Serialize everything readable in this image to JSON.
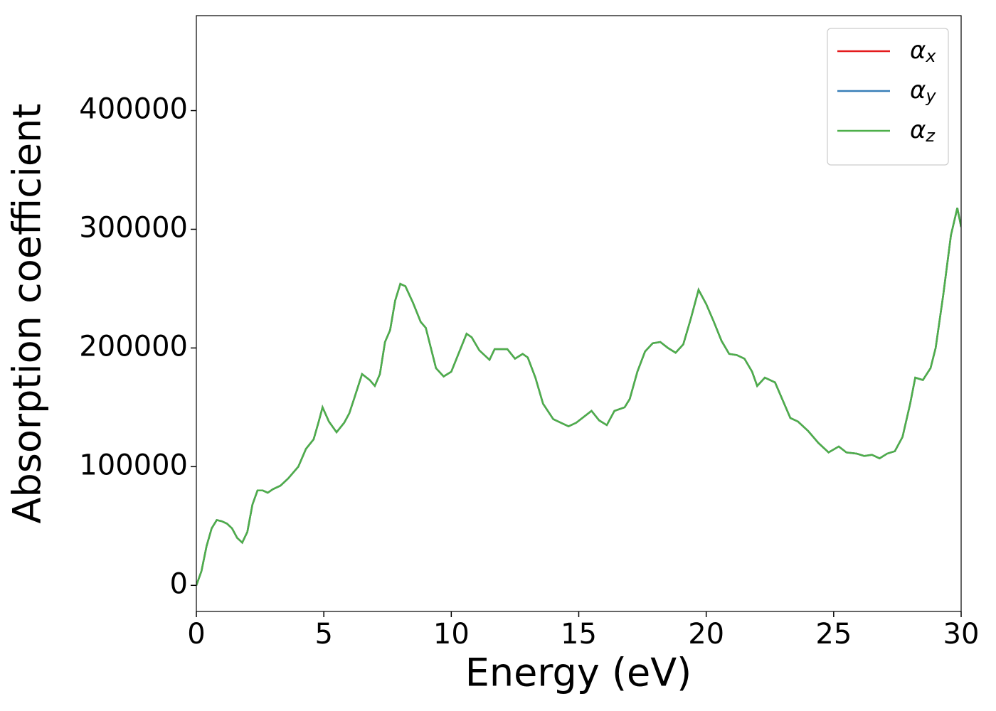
{
  "chart_data": {
    "type": "line",
    "xlabel": "Energy (eV)",
    "ylabel": "Absorption coefficient",
    "xlim": [
      0,
      30
    ],
    "xticks": [
      0,
      5,
      10,
      15,
      20,
      25,
      30
    ],
    "ylim": [
      -22000,
      480000
    ],
    "yticks": [
      0,
      100000,
      200000,
      300000,
      400000
    ],
    "legend": "upper right",
    "grid": false,
    "x": [
      0,
      0.2,
      0.4,
      0.6,
      0.8,
      1.0,
      1.2,
      1.4,
      1.6,
      1.8,
      2.0,
      2.2,
      2.4,
      2.6,
      2.8,
      3.0,
      3.3,
      3.6,
      4.0,
      4.3,
      4.6,
      4.8,
      4.95,
      5.2,
      5.5,
      5.8,
      6.0,
      6.2,
      6.5,
      6.8,
      7.0,
      7.2,
      7.4,
      7.6,
      7.8,
      8.0,
      8.2,
      8.5,
      8.8,
      9.0,
      9.2,
      9.4,
      9.7,
      10.0,
      10.3,
      10.6,
      10.8,
      11.1,
      11.5,
      11.7,
      12.0,
      12.2,
      12.5,
      12.8,
      13.0,
      13.3,
      13.6,
      14.0,
      14.3,
      14.6,
      14.9,
      15.2,
      15.5,
      15.8,
      16.1,
      16.4,
      16.8,
      17.0,
      17.3,
      17.6,
      17.9,
      18.2,
      18.5,
      18.8,
      19.1,
      19.4,
      19.7,
      20.0,
      20.3,
      20.6,
      20.9,
      21.2,
      21.5,
      21.8,
      22.0,
      22.3,
      22.7,
      23.0,
      23.3,
      23.6,
      24.0,
      24.4,
      24.8,
      25.2,
      25.5,
      25.9,
      26.2,
      26.5,
      26.8,
      27.1,
      27.4,
      27.7,
      28.0,
      28.2,
      28.5,
      28.8,
      29.0,
      29.3,
      29.6,
      29.85,
      30.0
    ],
    "series": [
      {
        "name": "αx",
        "color": "#e41a1c",
        "values": [
          0,
          12000,
          33000,
          48000,
          55000,
          54000,
          52000,
          48000,
          40000,
          36000,
          45000,
          68000,
          80000,
          80000,
          78000,
          81000,
          84000,
          90000,
          100000,
          115000,
          123000,
          138000,
          150000,
          138000,
          129000,
          137000,
          145000,
          158000,
          178000,
          173000,
          168000,
          178000,
          205000,
          215000,
          240000,
          254000,
          252000,
          238000,
          222000,
          217000,
          200000,
          183000,
          176000,
          180000,
          196000,
          212000,
          209000,
          198000,
          190000,
          199000,
          199000,
          199000,
          191000,
          195000,
          192000,
          175000,
          153000,
          140000,
          137000,
          134000,
          137000,
          142000,
          147000,
          139000,
          135000,
          147000,
          150000,
          157000,
          180000,
          197000,
          204000,
          205000,
          200000,
          196000,
          203000,
          225000,
          249000,
          237000,
          222000,
          206000,
          195000,
          194000,
          191000,
          180000,
          168000,
          175000,
          171000,
          156000,
          141000,
          138000,
          130000,
          120000,
          112000,
          117000,
          112000,
          111000,
          109000,
          110000,
          107000,
          111000,
          113000,
          125000,
          153000,
          175000,
          173000,
          183000,
          200000,
          245000,
          295000,
          318000,
          302000
        ]
      },
      {
        "name": "αy",
        "color": "#377eb8",
        "values": [
          0,
          12000,
          33000,
          48000,
          55000,
          54000,
          52000,
          48000,
          40000,
          36000,
          45000,
          68000,
          80000,
          80000,
          78000,
          81000,
          84000,
          90000,
          100000,
          115000,
          123000,
          138000,
          150000,
          138000,
          129000,
          137000,
          145000,
          158000,
          178000,
          173000,
          168000,
          178000,
          205000,
          215000,
          240000,
          254000,
          252000,
          238000,
          222000,
          217000,
          200000,
          183000,
          176000,
          180000,
          196000,
          212000,
          209000,
          198000,
          190000,
          199000,
          199000,
          199000,
          191000,
          195000,
          192000,
          175000,
          153000,
          140000,
          137000,
          134000,
          137000,
          142000,
          147000,
          139000,
          135000,
          147000,
          150000,
          157000,
          180000,
          197000,
          204000,
          205000,
          200000,
          196000,
          203000,
          225000,
          249000,
          237000,
          222000,
          206000,
          195000,
          194000,
          191000,
          180000,
          168000,
          175000,
          171000,
          156000,
          141000,
          138000,
          130000,
          120000,
          112000,
          117000,
          112000,
          111000,
          109000,
          110000,
          107000,
          111000,
          113000,
          125000,
          153000,
          175000,
          173000,
          183000,
          200000,
          245000,
          295000,
          318000,
          302000
        ]
      },
      {
        "name": "αz",
        "color": "#4daf4a",
        "values": [
          0,
          12000,
          33000,
          48000,
          55000,
          54000,
          52000,
          48000,
          40000,
          36000,
          45000,
          68000,
          80000,
          80000,
          78000,
          81000,
          84000,
          90000,
          100000,
          115000,
          123000,
          138000,
          150000,
          138000,
          129000,
          137000,
          145000,
          158000,
          178000,
          173000,
          168000,
          178000,
          205000,
          215000,
          240000,
          254000,
          252000,
          238000,
          222000,
          217000,
          200000,
          183000,
          176000,
          180000,
          196000,
          212000,
          209000,
          198000,
          190000,
          199000,
          199000,
          199000,
          191000,
          195000,
          192000,
          175000,
          153000,
          140000,
          137000,
          134000,
          137000,
          142000,
          147000,
          139000,
          135000,
          147000,
          150000,
          157000,
          180000,
          197000,
          204000,
          205000,
          200000,
          196000,
          203000,
          225000,
          249000,
          237000,
          222000,
          206000,
          195000,
          194000,
          191000,
          180000,
          168000,
          175000,
          171000,
          156000,
          141000,
          138000,
          130000,
          120000,
          112000,
          117000,
          112000,
          111000,
          109000,
          110000,
          107000,
          111000,
          113000,
          125000,
          153000,
          175000,
          173000,
          183000,
          200000,
          245000,
          295000,
          318000,
          302000
        ]
      }
    ]
  }
}
